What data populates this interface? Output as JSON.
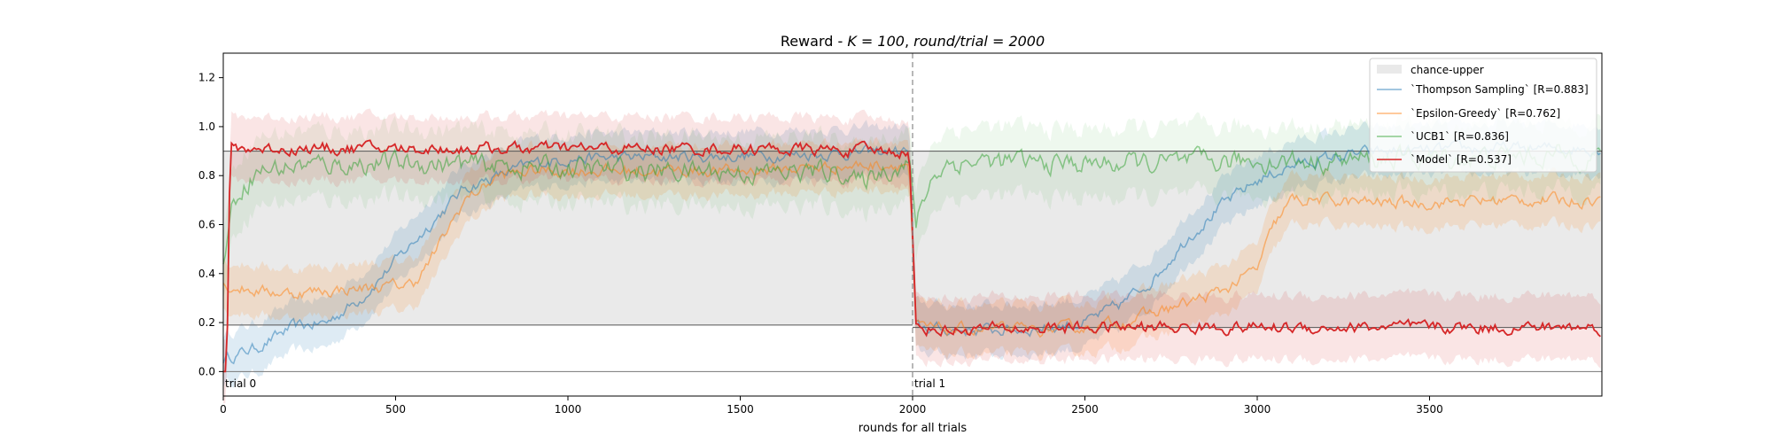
{
  "chart_data": {
    "type": "line",
    "title": "Reward - K = 100, round/trial = 2000",
    "title_parts": {
      "prefix": "Reward - ",
      "k": "K = 100",
      "sep": ", ",
      "rt": "round/trial = 2000"
    },
    "xlabel": "rounds for all trials",
    "ylabel": "",
    "xlim": [
      0,
      4000
    ],
    "ylim": [
      -0.1,
      1.3
    ],
    "xticks": [
      0,
      500,
      1000,
      1500,
      2000,
      2500,
      3000,
      3500
    ],
    "yticks": [
      0.0,
      0.2,
      0.4,
      0.6,
      0.8,
      1.0,
      1.2
    ],
    "grid": false,
    "legend_position": "top-right",
    "legend_labels": {
      "band": "chance-upper",
      "Thompson Sampling": "`Thompson Sampling` [R=0.883]",
      "Epsilon-Greedy": "`Epsilon-Greedy` [R=0.762]",
      "UCB1": "`UCB1` [R=0.836]",
      "Model": "`Model` [R=0.537]"
    },
    "trial_boundaries": [
      {
        "x": 0,
        "label": "trial 0"
      },
      {
        "x": 2000,
        "label": "trial 1"
      }
    ],
    "chance_band": [
      {
        "x0": 0,
        "x1": 2000,
        "lower": 0.19,
        "upper": 0.9
      },
      {
        "x0": 2000,
        "x1": 4000,
        "lower": 0.18,
        "upper": 0.9
      }
    ],
    "zero_line": 0.0,
    "series": [
      {
        "name": "Thompson Sampling",
        "mean_return": 0.883,
        "color": "#1f77b4",
        "line_alpha": 0.5,
        "band_alpha": 0.15,
        "x": [
          0,
          100,
          200,
          300,
          400,
          500,
          600,
          700,
          800,
          900,
          1000,
          1500,
          1990,
          2010,
          2100,
          2200,
          2300,
          2400,
          2500,
          2600,
          2700,
          2800,
          2900,
          3000,
          3100,
          3200,
          3300,
          3400,
          3500,
          3600,
          3700,
          3800,
          3900,
          4000
        ],
        "y": [
          0.05,
          0.1,
          0.18,
          0.2,
          0.3,
          0.45,
          0.6,
          0.75,
          0.8,
          0.85,
          0.87,
          0.88,
          0.9,
          0.18,
          0.17,
          0.17,
          0.17,
          0.18,
          0.2,
          0.27,
          0.38,
          0.55,
          0.68,
          0.78,
          0.84,
          0.87,
          0.89,
          0.9,
          0.9,
          0.91,
          0.91,
          0.91,
          0.91,
          0.91
        ],
        "band": 0.1
      },
      {
        "name": "Epsilon-Greedy",
        "mean_return": 0.762,
        "color": "#ff7f0e",
        "line_alpha": 0.5,
        "band_alpha": 0.15,
        "x": [
          0,
          100,
          200,
          300,
          400,
          500,
          550,
          600,
          700,
          800,
          900,
          1000,
          1500,
          1990,
          2010,
          2100,
          2200,
          2300,
          2400,
          2500,
          2600,
          2700,
          2800,
          2900,
          3000,
          3050,
          3100,
          3200,
          3300,
          3500,
          3700,
          3900,
          4000
        ],
        "y": [
          0.35,
          0.33,
          0.32,
          0.33,
          0.34,
          0.35,
          0.36,
          0.45,
          0.7,
          0.8,
          0.82,
          0.82,
          0.82,
          0.85,
          0.18,
          0.17,
          0.17,
          0.17,
          0.17,
          0.18,
          0.2,
          0.24,
          0.28,
          0.33,
          0.42,
          0.6,
          0.7,
          0.7,
          0.69,
          0.69,
          0.7,
          0.7,
          0.7
        ],
        "band": 0.1
      },
      {
        "name": "UCB1",
        "mean_return": 0.836,
        "color": "#2ca02c",
        "line_alpha": 0.5,
        "band_alpha": 0.08,
        "x": [
          0,
          20,
          50,
          100,
          200,
          400,
          600,
          800,
          1000,
          1200,
          1400,
          1600,
          1800,
          1850,
          1900,
          1990,
          2010,
          2030,
          2060,
          2100,
          2200,
          2400,
          2600,
          2800,
          3000,
          3200,
          3400,
          3600,
          3800,
          4000
        ],
        "y": [
          0.45,
          0.65,
          0.75,
          0.82,
          0.84,
          0.85,
          0.85,
          0.84,
          0.83,
          0.82,
          0.82,
          0.81,
          0.82,
          0.76,
          0.82,
          0.85,
          0.6,
          0.7,
          0.8,
          0.85,
          0.86,
          0.85,
          0.85,
          0.85,
          0.86,
          0.86,
          0.87,
          0.87,
          0.88,
          0.88
        ],
        "band": 0.14
      },
      {
        "name": "Model",
        "mean_return": 0.537,
        "color": "#d62728",
        "line_alpha": 1,
        "band_alpha": 0.12,
        "x": [
          0,
          10,
          20,
          100,
          500,
          1000,
          1500,
          1990,
          2010,
          2100,
          2500,
          3000,
          3500,
          4000
        ],
        "y": [
          0.0,
          0.0,
          0.91,
          0.91,
          0.91,
          0.91,
          0.91,
          0.9,
          0.18,
          0.17,
          0.18,
          0.18,
          0.18,
          0.18
        ],
        "band": 0.13
      }
    ]
  }
}
